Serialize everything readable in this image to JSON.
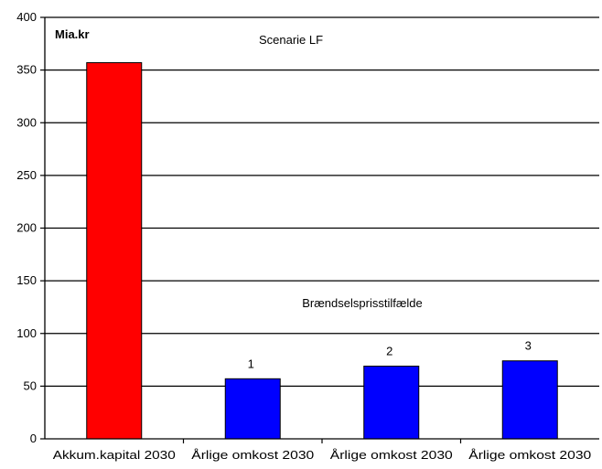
{
  "chart_data": {
    "type": "bar",
    "title": "Scenarie LF",
    "unit_label": "Mia.kr",
    "ylabel": "",
    "xlabel": "",
    "ylim": [
      0,
      400
    ],
    "y_ticks": [
      0,
      50,
      100,
      150,
      200,
      250,
      300,
      350,
      400
    ],
    "grid": true,
    "legend": "none",
    "categories": [
      "Akkum.kapital 2030",
      "Årlige omkost 2030",
      "Årlige omkost 2030",
      "Årlige omkost 2030"
    ],
    "values": [
      357,
      57,
      69,
      74
    ],
    "bar_colors": [
      "#ff0000",
      "#0000ff",
      "#0000ff",
      "#0000ff"
    ],
    "bar_labels": [
      "",
      "1",
      "2",
      "3"
    ],
    "annotation": "Brændselsprisstilfælde"
  }
}
